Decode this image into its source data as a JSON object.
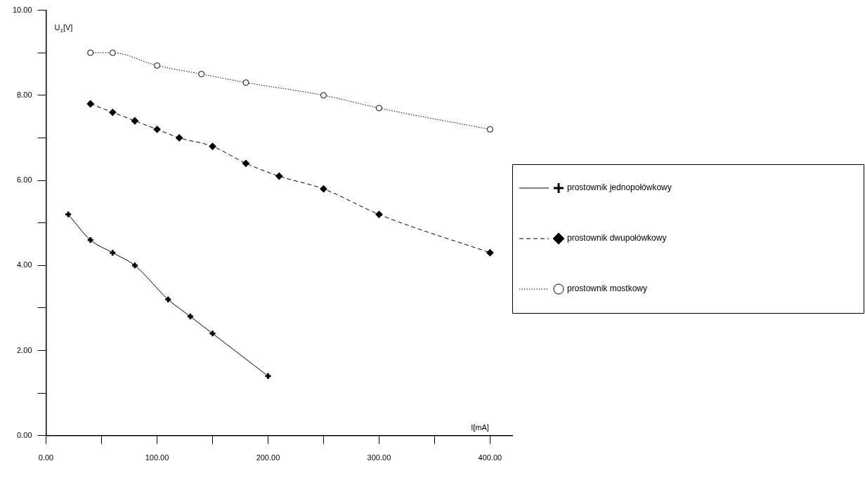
{
  "chart_data": {
    "type": "line",
    "xlabel": "I[mA]",
    "ylabel": "U$_{1}$[V]",
    "xlim": [
      0,
      420
    ],
    "ylim": [
      0,
      10
    ],
    "xticks": [
      {
        "value": 0,
        "label": "0.00"
      },
      {
        "value": 50,
        "label": null
      },
      {
        "value": 100,
        "label": "100.00"
      },
      {
        "value": 150,
        "label": null
      },
      {
        "value": 200,
        "label": "200.00"
      },
      {
        "value": 250,
        "label": null
      },
      {
        "value": 300,
        "label": "300.00"
      },
      {
        "value": 350,
        "label": null
      },
      {
        "value": 400,
        "label": "400.00"
      }
    ],
    "yticks": [
      {
        "value": 0,
        "label": "0.00"
      },
      {
        "value": 1,
        "label": null
      },
      {
        "value": 2,
        "label": "2.00"
      },
      {
        "value": 3,
        "label": null
      },
      {
        "value": 4,
        "label": "4.00"
      },
      {
        "value": 5,
        "label": null
      },
      {
        "value": 6,
        "label": "6.00"
      },
      {
        "value": 7,
        "label": null
      },
      {
        "value": 8,
        "label": "8.00"
      },
      {
        "value": 9,
        "label": null
      },
      {
        "value": 10,
        "label": "10.00"
      }
    ],
    "grid": false,
    "legend": "right",
    "series": [
      {
        "name": "prostownik jednopołówkowy",
        "color": "#000000",
        "marker": "cross",
        "line_style": "solid",
        "x": [
          20,
          40,
          60,
          80,
          110,
          130,
          150,
          200
        ],
        "values": [
          5.2,
          4.6,
          4.3,
          4.0,
          3.2,
          2.8,
          2.4,
          1.4
        ]
      },
      {
        "name": "prostownik dwupołówkowy",
        "color": "#000000",
        "marker": "diamond",
        "line_style": "dashed",
        "x": [
          40,
          60,
          80,
          100,
          120,
          150,
          180,
          210,
          250,
          300,
          400
        ],
        "values": [
          7.8,
          7.6,
          7.4,
          7.2,
          7.0,
          6.8,
          6.4,
          6.1,
          5.8,
          5.2,
          4.3
        ]
      },
      {
        "name": "prostownik mostkowy",
        "color": "#000000",
        "marker": "circle",
        "line_style": "dotted",
        "x": [
          40,
          60,
          100,
          140,
          180,
          250,
          300,
          400
        ],
        "values": [
          9.0,
          9.0,
          8.7,
          8.5,
          8.3,
          8.0,
          7.7,
          7.2
        ]
      }
    ]
  }
}
